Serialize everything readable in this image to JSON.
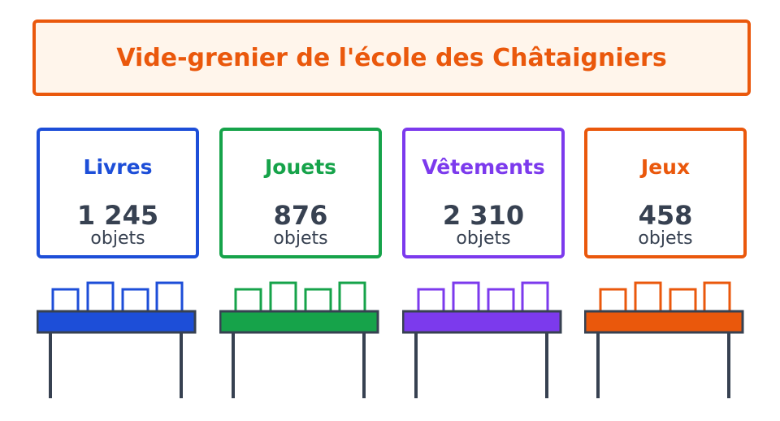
{
  "title": "Vide-grenier de l'école des Châtaigniers",
  "categories": [
    {
      "name": "Livres",
      "count": "1 245",
      "unit": "objets",
      "color": "#1d4ed8"
    },
    {
      "name": "Jouets",
      "count": "876",
      "unit": "objets",
      "color": "#16a34a"
    },
    {
      "name": "Vêtements",
      "count": "2 310",
      "unit": "objets",
      "color": "#7c3aed"
    },
    {
      "name": "Jeux",
      "count": "458",
      "unit": "objets",
      "color": "#ea580c"
    }
  ],
  "colors": {
    "title": "#ea580c",
    "title_background": "#fff5eb",
    "text": "#374151",
    "stall_legs": "#374151"
  },
  "icons": [
    "market-stall-icon"
  ]
}
